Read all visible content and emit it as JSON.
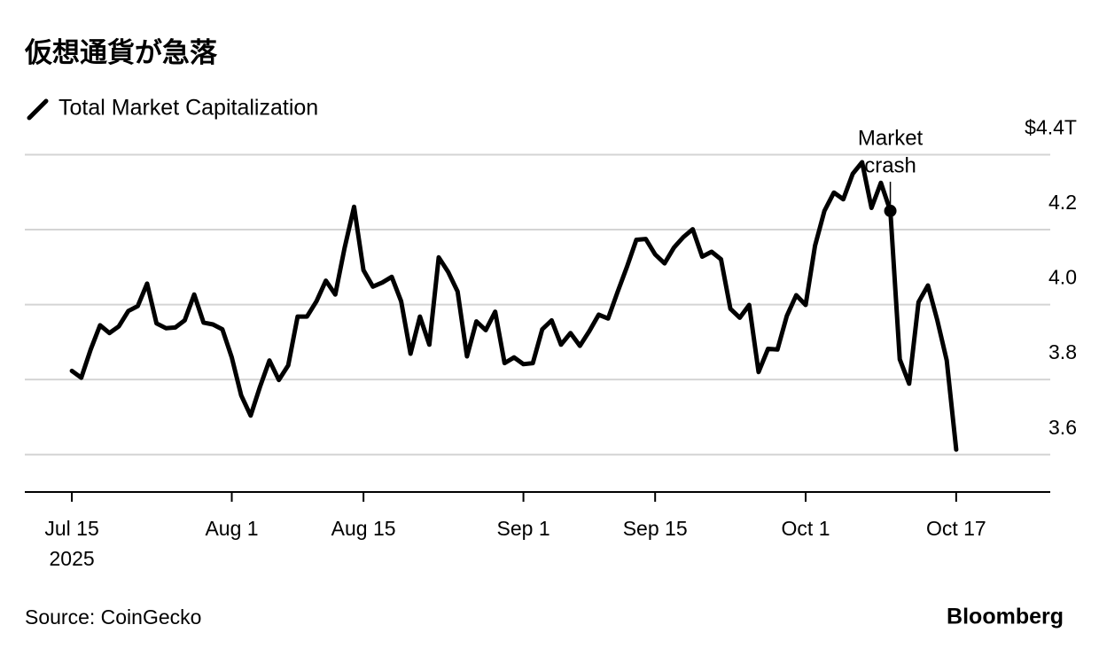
{
  "chart_data": {
    "type": "line",
    "title": "仮想通貨が急落",
    "source": "Source: CoinGecko",
    "brand": "Bloomberg",
    "x": [
      "2025-07-15",
      "2025-07-16",
      "2025-07-17",
      "2025-07-18",
      "2025-07-19",
      "2025-07-20",
      "2025-07-21",
      "2025-07-22",
      "2025-07-23",
      "2025-07-24",
      "2025-07-25",
      "2025-07-26",
      "2025-07-27",
      "2025-07-28",
      "2025-07-29",
      "2025-07-30",
      "2025-07-31",
      "2025-08-01",
      "2025-08-02",
      "2025-08-03",
      "2025-08-04",
      "2025-08-05",
      "2025-08-06",
      "2025-08-07",
      "2025-08-08",
      "2025-08-09",
      "2025-08-10",
      "2025-08-11",
      "2025-08-12",
      "2025-08-13",
      "2025-08-14",
      "2025-08-15",
      "2025-08-16",
      "2025-08-17",
      "2025-08-18",
      "2025-08-19",
      "2025-08-20",
      "2025-08-21",
      "2025-08-22",
      "2025-08-23",
      "2025-08-24",
      "2025-08-25",
      "2025-08-26",
      "2025-08-27",
      "2025-08-28",
      "2025-08-29",
      "2025-08-30",
      "2025-08-31",
      "2025-09-01",
      "2025-09-02",
      "2025-09-03",
      "2025-09-04",
      "2025-09-05",
      "2025-09-06",
      "2025-09-07",
      "2025-09-08",
      "2025-09-09",
      "2025-09-10",
      "2025-09-11",
      "2025-09-12",
      "2025-09-13",
      "2025-09-14",
      "2025-09-15",
      "2025-09-16",
      "2025-09-17",
      "2025-09-18",
      "2025-09-19",
      "2025-09-20",
      "2025-09-21",
      "2025-09-22",
      "2025-09-23",
      "2025-09-24",
      "2025-09-25",
      "2025-09-26",
      "2025-09-27",
      "2025-09-28",
      "2025-09-29",
      "2025-09-30",
      "2025-10-01",
      "2025-10-02",
      "2025-10-03",
      "2025-10-04",
      "2025-10-05",
      "2025-10-06",
      "2025-10-07",
      "2025-10-08",
      "2025-10-09",
      "2025-10-10",
      "2025-10-11",
      "2025-10-12",
      "2025-10-13",
      "2025-10-14",
      "2025-10-15",
      "2025-10-16",
      "2025-10-17"
    ],
    "series": [
      {
        "name": "Total Market Capitalization",
        "color": "#000000",
        "values": [
          3.823,
          3.805,
          3.88,
          3.945,
          3.924,
          3.942,
          3.983,
          3.996,
          4.056,
          3.95,
          3.937,
          3.939,
          3.958,
          4.027,
          3.952,
          3.947,
          3.934,
          3.859,
          3.758,
          3.704,
          3.781,
          3.851,
          3.799,
          3.838,
          3.968,
          3.968,
          4.009,
          4.064,
          4.027,
          4.152,
          4.261,
          4.092,
          4.048,
          4.059,
          4.074,
          4.009,
          3.869,
          3.968,
          3.893,
          4.126,
          4.087,
          4.035,
          3.862,
          3.955,
          3.932,
          3.981,
          3.844,
          3.859,
          3.841,
          3.844,
          3.934,
          3.958,
          3.893,
          3.924,
          3.89,
          3.929,
          3.973,
          3.963,
          4.033,
          4.1,
          4.173,
          4.175,
          4.134,
          4.11,
          4.152,
          4.18,
          4.201,
          4.128,
          4.141,
          4.121,
          3.989,
          3.965,
          3.999,
          3.82,
          3.882,
          3.88,
          3.97,
          4.025,
          3.999,
          4.157,
          4.25,
          4.299,
          4.281,
          4.349,
          4.38,
          4.258,
          4.325,
          4.25,
          3.854,
          3.789,
          4.007,
          4.051,
          3.958,
          3.851,
          3.613
        ]
      }
    ],
    "xlim": [
      "2025-07-10",
      "2025-10-27"
    ],
    "xticks": [
      {
        "value": "2025-07-15",
        "label": "Jul 15"
      },
      {
        "value": "2025-08-01",
        "label": "Aug 1"
      },
      {
        "value": "2025-08-15",
        "label": "Aug 15"
      },
      {
        "value": "2025-09-01",
        "label": "Sep 1"
      },
      {
        "value": "2025-09-15",
        "label": "Sep 15"
      },
      {
        "value": "2025-10-01",
        "label": "Oct 1"
      },
      {
        "value": "2025-10-17",
        "label": "Oct 17"
      }
    ],
    "x_year_label": "2025",
    "ylim": [
      3.5,
      4.4
    ],
    "yticks": [
      3.6,
      3.8,
      {
        "value": 4.0,
        "label": "4.0"
      },
      4.2,
      {
        "value": 4.4,
        "label": "$4.4T"
      }
    ],
    "grid": true,
    "annotation": {
      "lines": [
        "Market",
        "crash"
      ],
      "x": "2025-10-10"
    }
  }
}
